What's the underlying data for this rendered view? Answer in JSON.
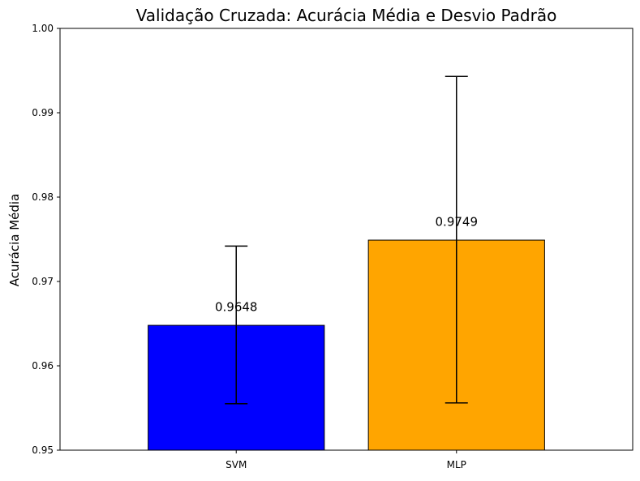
{
  "chart_data": {
    "type": "bar",
    "title": "Validação Cruzada: Acurácia Média e Desvio Padrão",
    "xlabel": "",
    "ylabel": "Acurácia Média",
    "ylim": [
      0.95,
      1.0
    ],
    "yticks": [
      "0.95",
      "0.96",
      "0.97",
      "0.98",
      "0.99",
      "1.00"
    ],
    "grid": false,
    "categories": [
      "SVM",
      "MLP"
    ],
    "values": [
      0.9648,
      0.9749
    ],
    "value_labels": [
      "0.9648",
      "0.9749"
    ],
    "error_low": [
      0.9555,
      0.9556
    ],
    "error_high": [
      0.9742,
      0.9943
    ],
    "colors": [
      "#0000ff",
      "#ffa500"
    ],
    "edge_color": "#000000"
  }
}
